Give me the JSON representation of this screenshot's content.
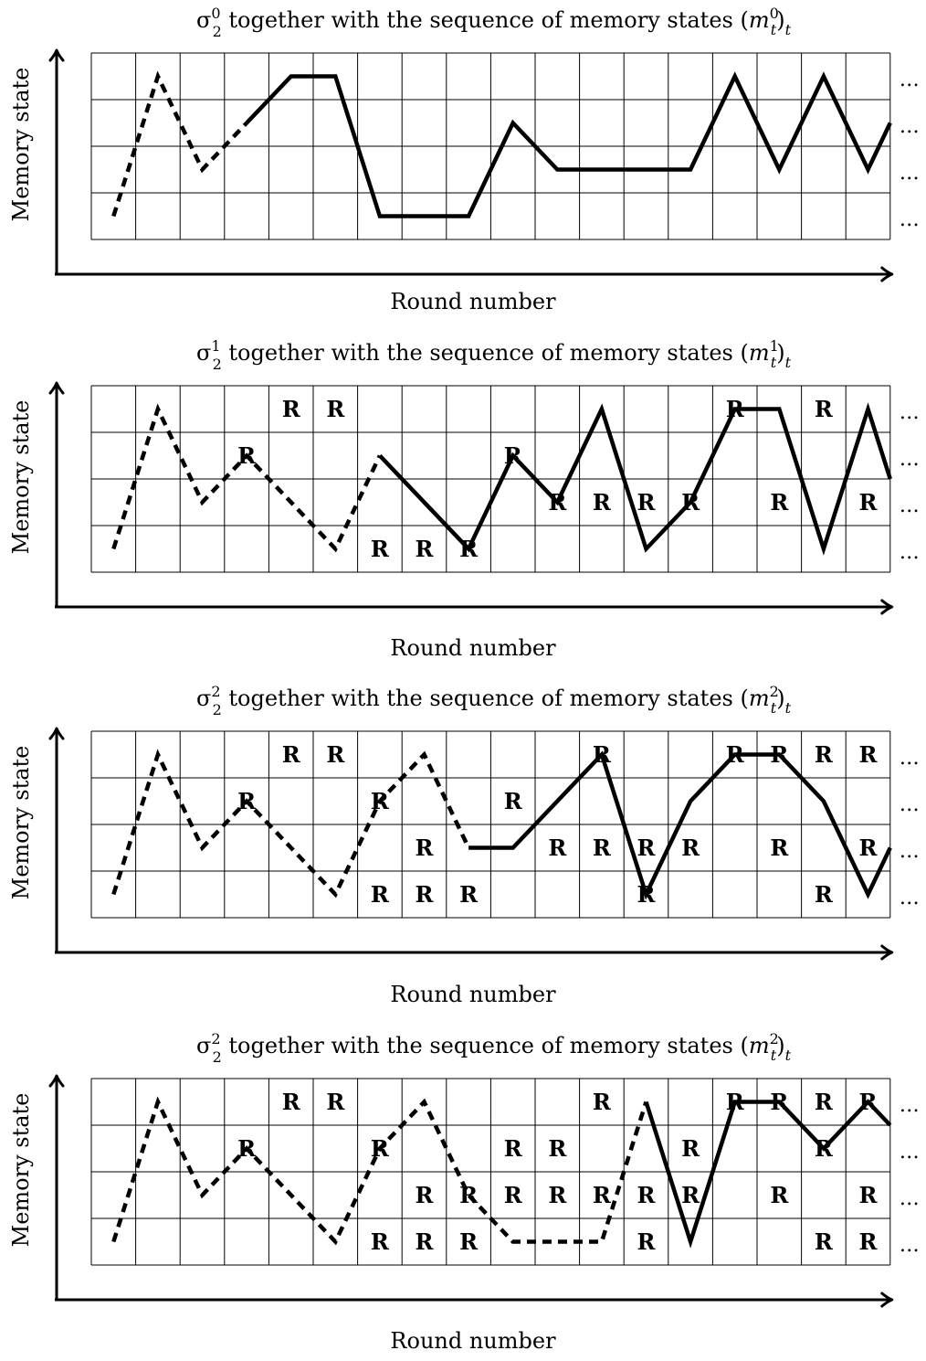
{
  "panels": [
    {
      "title": "σ₂⁰ together with the sequence of memory states (m_t⁰)_t",
      "title_parts": {
        "sym": "σ",
        "sym_sub": "2",
        "sym_sup": "0",
        "text": " together with the sequence of memory states ",
        "m": "m",
        "m_sub": "t",
        "m_sup": "0",
        "tail": "t"
      },
      "y_label": "Memory state",
      "x_label": "Round number",
      "row_ellipsis": [
        "…",
        "…",
        "…",
        "…"
      ],
      "resets": [],
      "dashed_path": [
        [
          0.5,
          0.5
        ],
        [
          1.5,
          3.5
        ],
        [
          2.5,
          1.5
        ],
        [
          3.5,
          2.5
        ]
      ],
      "solid_path": [
        [
          3.5,
          2.5
        ],
        [
          4.5,
          3.5
        ],
        [
          5.5,
          3.5
        ],
        [
          6.5,
          0.5
        ],
        [
          7.5,
          0.5
        ],
        [
          8.5,
          0.5
        ],
        [
          9.5,
          2.5
        ],
        [
          10.5,
          1.5
        ],
        [
          11.5,
          1.5
        ],
        [
          12.5,
          1.5
        ],
        [
          13.5,
          1.5
        ],
        [
          14.5,
          3.5
        ],
        [
          15.5,
          1.5
        ],
        [
          16.5,
          3.5
        ],
        [
          17.5,
          1.5
        ],
        [
          18,
          2.5
        ]
      ]
    },
    {
      "title": "σ₂¹ together with the sequence of memory states (m_t¹)_t",
      "title_parts": {
        "sym": "σ",
        "sym_sub": "2",
        "sym_sup": "1",
        "text": " together with the sequence of memory states ",
        "m": "m",
        "m_sub": "t",
        "m_sup": "1",
        "tail": "t"
      },
      "y_label": "Memory state",
      "x_label": "Round number",
      "row_ellipsis": [
        "…",
        "…",
        "…",
        "…"
      ],
      "resets": [
        {
          "label": "R",
          "col": 4,
          "row": 3
        },
        {
          "label": "R",
          "col": 5,
          "row": 3
        },
        {
          "label": "R",
          "col": 14,
          "row": 3
        },
        {
          "label": "R",
          "col": 16,
          "row": 3
        },
        {
          "label": "R",
          "col": 3,
          "row": 2
        },
        {
          "label": "R",
          "col": 9,
          "row": 2
        },
        {
          "label": "R",
          "col": 10,
          "row": 1
        },
        {
          "label": "R",
          "col": 11,
          "row": 1
        },
        {
          "label": "R",
          "col": 12,
          "row": 1
        },
        {
          "label": "R",
          "col": 13,
          "row": 1
        },
        {
          "label": "R",
          "col": 15,
          "row": 1
        },
        {
          "label": "R",
          "col": 17,
          "row": 1
        },
        {
          "label": "R",
          "col": 6,
          "row": 0
        },
        {
          "label": "R",
          "col": 7,
          "row": 0
        },
        {
          "label": "R",
          "col": 8,
          "row": 0
        }
      ],
      "dashed_path": [
        [
          0.5,
          0.5
        ],
        [
          1.5,
          3.5
        ],
        [
          2.5,
          1.5
        ],
        [
          3.5,
          2.5
        ],
        [
          5.5,
          0.5
        ],
        [
          6.5,
          2.5
        ]
      ],
      "solid_path": [
        [
          6.5,
          2.5
        ],
        [
          8.5,
          0.5
        ],
        [
          9.5,
          2.5
        ],
        [
          10.5,
          1.5
        ],
        [
          11.5,
          3.5
        ],
        [
          12.5,
          0.5
        ],
        [
          13.5,
          1.5
        ],
        [
          14.5,
          3.5
        ],
        [
          15.5,
          3.5
        ],
        [
          16.5,
          0.5
        ],
        [
          17.5,
          3.5
        ],
        [
          18,
          2
        ]
      ]
    },
    {
      "title": "σ₂² together with the sequence of memory states (m_t²)_t",
      "title_parts": {
        "sym": "σ",
        "sym_sub": "2",
        "sym_sup": "2",
        "text": " together with the sequence of memory states ",
        "m": "m",
        "m_sub": "t",
        "m_sup": "2",
        "tail": "t"
      },
      "y_label": "Memory state",
      "x_label": "Round number",
      "row_ellipsis": [
        "…",
        "…",
        "…",
        "…"
      ],
      "resets": [
        {
          "label": "R",
          "col": 4,
          "row": 3
        },
        {
          "label": "R",
          "col": 5,
          "row": 3
        },
        {
          "label": "R",
          "col": 11,
          "row": 3
        },
        {
          "label": "R",
          "col": 14,
          "row": 3
        },
        {
          "label": "R",
          "col": 15,
          "row": 3
        },
        {
          "label": "R",
          "col": 16,
          "row": 3
        },
        {
          "label": "R",
          "col": 17,
          "row": 3
        },
        {
          "label": "R",
          "col": 3,
          "row": 2
        },
        {
          "label": "R",
          "col": 6,
          "row": 2
        },
        {
          "label": "R",
          "col": 9,
          "row": 2
        },
        {
          "label": "R",
          "col": 7,
          "row": 1
        },
        {
          "label": "R",
          "col": 10,
          "row": 1
        },
        {
          "label": "R",
          "col": 11,
          "row": 1
        },
        {
          "label": "R",
          "col": 12,
          "row": 1
        },
        {
          "label": "R",
          "col": 13,
          "row": 1
        },
        {
          "label": "R",
          "col": 15,
          "row": 1
        },
        {
          "label": "R",
          "col": 17,
          "row": 1
        },
        {
          "label": "R",
          "col": 6,
          "row": 0
        },
        {
          "label": "R",
          "col": 7,
          "row": 0
        },
        {
          "label": "R",
          "col": 8,
          "row": 0
        },
        {
          "label": "R",
          "col": 12,
          "row": 0
        },
        {
          "label": "R",
          "col": 16,
          "row": 0
        }
      ],
      "dashed_path": [
        [
          0.5,
          0.5
        ],
        [
          1.5,
          3.5
        ],
        [
          2.5,
          1.5
        ],
        [
          3.5,
          2.5
        ],
        [
          5.5,
          0.5
        ],
        [
          6.5,
          2.5
        ],
        [
          7.5,
          3.5
        ],
        [
          8.5,
          1.5
        ]
      ],
      "solid_path": [
        [
          8.5,
          1.5
        ],
        [
          9.5,
          1.5
        ],
        [
          11.5,
          3.5
        ],
        [
          12.5,
          0.5
        ],
        [
          13.5,
          2.5
        ],
        [
          14.5,
          3.5
        ],
        [
          15.5,
          3.5
        ],
        [
          16.5,
          2.5
        ],
        [
          17.5,
          0.5
        ],
        [
          18,
          1.5
        ]
      ]
    },
    {
      "title": "σ₂² together with the sequence of memory states (m_t²)_t",
      "title_parts": {
        "sym": "σ",
        "sym_sub": "2",
        "sym_sup": "2",
        "text": " together with the sequence of memory states ",
        "m": "m",
        "m_sub": "t",
        "m_sup": "2",
        "tail": "t"
      },
      "y_label": "Memory state",
      "x_label": "Round number",
      "row_ellipsis": [
        "…",
        "…",
        "…",
        "…"
      ],
      "resets": [
        {
          "label": "R",
          "col": 4,
          "row": 3
        },
        {
          "label": "R",
          "col": 5,
          "row": 3
        },
        {
          "label": "R",
          "col": 11,
          "row": 3
        },
        {
          "label": "R",
          "col": 14,
          "row": 3
        },
        {
          "label": "R",
          "col": 15,
          "row": 3
        },
        {
          "label": "R",
          "col": 16,
          "row": 3
        },
        {
          "label": "R",
          "col": 17,
          "row": 3
        },
        {
          "label": "R",
          "col": 3,
          "row": 2
        },
        {
          "label": "R",
          "col": 6,
          "row": 2
        },
        {
          "label": "R",
          "col": 9,
          "row": 2
        },
        {
          "label": "R",
          "col": 10,
          "row": 2
        },
        {
          "label": "R",
          "col": 13,
          "row": 2
        },
        {
          "label": "R",
          "col": 16,
          "row": 2
        },
        {
          "label": "R",
          "col": 7,
          "row": 1
        },
        {
          "label": "R",
          "col": 8,
          "row": 1
        },
        {
          "label": "R",
          "col": 9,
          "row": 1
        },
        {
          "label": "R",
          "col": 10,
          "row": 1
        },
        {
          "label": "R",
          "col": 11,
          "row": 1
        },
        {
          "label": "R",
          "col": 12,
          "row": 1
        },
        {
          "label": "R",
          "col": 13,
          "row": 1
        },
        {
          "label": "R",
          "col": 15,
          "row": 1
        },
        {
          "label": "R",
          "col": 17,
          "row": 1
        },
        {
          "label": "R",
          "col": 6,
          "row": 0
        },
        {
          "label": "R",
          "col": 7,
          "row": 0
        },
        {
          "label": "R",
          "col": 8,
          "row": 0
        },
        {
          "label": "R",
          "col": 12,
          "row": 0
        },
        {
          "label": "R",
          "col": 16,
          "row": 0
        },
        {
          "label": "R",
          "col": 17,
          "row": 0
        }
      ],
      "dashed_path": [
        [
          0.5,
          0.5
        ],
        [
          1.5,
          3.5
        ],
        [
          2.5,
          1.5
        ],
        [
          3.5,
          2.5
        ],
        [
          5.5,
          0.5
        ],
        [
          6.5,
          2.5
        ],
        [
          7.5,
          3.5
        ],
        [
          8.5,
          1.5
        ],
        [
          9.5,
          0.5
        ],
        [
          11.5,
          0.5
        ],
        [
          12.5,
          3.5
        ]
      ],
      "solid_path": [
        [
          12.5,
          3.5
        ],
        [
          13.5,
          0.5
        ],
        [
          14.5,
          3.5
        ],
        [
          15.5,
          3.5
        ],
        [
          16.5,
          2.5
        ],
        [
          17.5,
          3.5
        ],
        [
          18,
          3
        ]
      ]
    }
  ]
}
